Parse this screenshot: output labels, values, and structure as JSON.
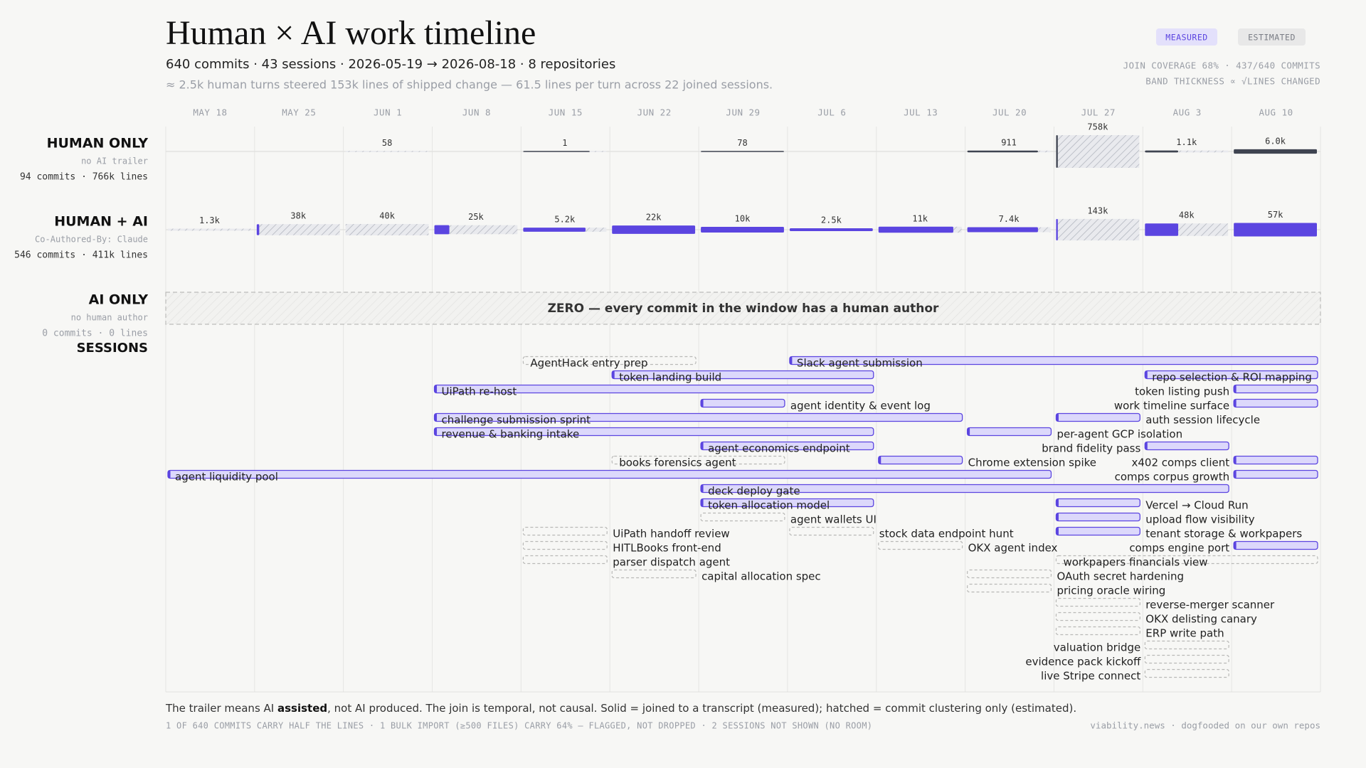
{
  "chart_data": {
    "type": "timeline",
    "title": "Human × AI work timeline",
    "subtitle": "640 commits · 43 sessions · 2026-05-19 → 2026-08-18 · 8 repositories",
    "note": "≈ 2.5k human turns steered 153k lines of shipped change — 61.5 lines per turn across 22 joined sessions.",
    "badges": [
      "MEASURED",
      "ESTIMATED"
    ],
    "coverage": [
      "JOIN COVERAGE 68% · 437/640 COMMITS",
      "BAND THICKNESS ∝ √LINES CHANGED"
    ],
    "x": [
      "MAY 18",
      "MAY 25",
      "JUN 1",
      "JUN 8",
      "JUN 15",
      "JUN 22",
      "JUN 29",
      "JUL 6",
      "JUL 13",
      "JUL 20",
      "JUL 27",
      "AUG 3",
      "AUG 10"
    ],
    "xlim": [
      0,
      13
    ],
    "lanes": [
      {
        "label": "HUMAN ONLY",
        "note": "no AI trailer",
        "stats": "94 commits · 766k lines",
        "color": "#3f4451",
        "values": [
          null,
          null,
          58,
          null,
          1,
          null,
          78,
          null,
          null,
          911,
          758000,
          1100,
          6000
        ],
        "value_labels": [
          null,
          null,
          "58",
          null,
          "1",
          null,
          "78",
          null,
          null,
          "911",
          "758k",
          "1.1k",
          "6.0k"
        ],
        "measured": [
          null,
          null,
          0,
          null,
          0.8,
          null,
          1,
          null,
          null,
          0.85,
          0.02,
          0.4,
          1
        ]
      },
      {
        "label": "HUMAN + AI",
        "note": "Co-Authored-By: Claude",
        "stats": "546 commits · 411k lines",
        "color": "#5b45e0",
        "values": [
          1300,
          38000,
          40000,
          25000,
          5200,
          22000,
          10000,
          2500,
          11000,
          7400,
          143000,
          48000,
          57000
        ],
        "value_labels": [
          "1.3k",
          "38k",
          "40k",
          "25k",
          "5.2k",
          "22k",
          "10k",
          "2.5k",
          "11k",
          "7.4k",
          "143k",
          "48k",
          "57k"
        ],
        "measured": [
          0,
          0.03,
          0,
          0.18,
          0.75,
          1,
          1,
          1,
          0.9,
          0.85,
          0.02,
          0.4,
          1
        ]
      },
      {
        "label": "AI ONLY",
        "note": "no human author",
        "stats": "0 commits · 0 lines",
        "empty_text": "ZERO — every commit in the window has a human author"
      }
    ],
    "sessions_label": "SESSIONS",
    "session_color": "#5b45e0",
    "sessions": [
      {
        "name": "AgentHack entry prep",
        "start": 4,
        "end": 6,
        "measured": false
      },
      {
        "name": "Slack agent submission",
        "start": 7,
        "end": 13,
        "measured": true
      },
      {
        "name": "token landing build",
        "start": 5,
        "end": 8,
        "measured": true
      },
      {
        "name": "repo selection & ROI mapping",
        "start": 11,
        "end": 13,
        "measured": true
      },
      {
        "name": "UiPath re-host",
        "start": 3,
        "end": 8,
        "measured": true
      },
      {
        "name": "token listing push",
        "start": 12,
        "end": 13,
        "measured": true
      },
      {
        "name": "agent identity & event log",
        "start": 6,
        "end": 7,
        "measured": true
      },
      {
        "name": "work timeline surface",
        "start": 12,
        "end": 13,
        "measured": true
      },
      {
        "name": "challenge submission sprint",
        "start": 3,
        "end": 9,
        "measured": true
      },
      {
        "name": "auth session lifecycle",
        "start": 10,
        "end": 11,
        "measured": true
      },
      {
        "name": "revenue & banking intake",
        "start": 3,
        "end": 8,
        "measured": true
      },
      {
        "name": "per-agent GCP isolation",
        "start": 9,
        "end": 10,
        "measured": true
      },
      {
        "name": "agent economics endpoint",
        "start": 6,
        "end": 8,
        "measured": true
      },
      {
        "name": "brand fidelity pass",
        "start": 11,
        "end": 12,
        "measured": true
      },
      {
        "name": "books forensics agent",
        "start": 5,
        "end": 7,
        "measured": false
      },
      {
        "name": "Chrome extension spike",
        "start": 8,
        "end": 9,
        "measured": true
      },
      {
        "name": "x402 comps client",
        "start": 12,
        "end": 13,
        "measured": true
      },
      {
        "name": "agent liquidity pool",
        "start": 0,
        "end": 10,
        "measured": true
      },
      {
        "name": "comps corpus growth",
        "start": 12,
        "end": 13,
        "measured": true
      },
      {
        "name": "deck deploy gate",
        "start": 6,
        "end": 12,
        "measured": true
      },
      {
        "name": "token allocation model",
        "start": 6,
        "end": 8,
        "measured": true
      },
      {
        "name": "Vercel → Cloud Run",
        "start": 10,
        "end": 11,
        "measured": true
      },
      {
        "name": "agent wallets UI",
        "start": 6,
        "end": 7,
        "measured": false
      },
      {
        "name": "upload flow visibility",
        "start": 10,
        "end": 11,
        "measured": true
      },
      {
        "name": "UiPath handoff review",
        "start": 4,
        "end": 5,
        "measured": false
      },
      {
        "name": "stock data endpoint hunt",
        "start": 7,
        "end": 8,
        "measured": false
      },
      {
        "name": "tenant storage & workpapers",
        "start": 10,
        "end": 11,
        "measured": true
      },
      {
        "name": "HITLBooks front-end",
        "start": 4,
        "end": 5,
        "measured": false
      },
      {
        "name": "OKX agent index",
        "start": 8,
        "end": 9,
        "measured": false
      },
      {
        "name": "comps engine port",
        "start": 12,
        "end": 13,
        "measured": true
      },
      {
        "name": "parser dispatch agent",
        "start": 4,
        "end": 5,
        "measured": false
      },
      {
        "name": "workpapers financials view",
        "start": 10,
        "end": 13,
        "measured": false
      },
      {
        "name": "capital allocation spec",
        "start": 5,
        "end": 6,
        "measured": false
      },
      {
        "name": "OAuth secret hardening",
        "start": 9,
        "end": 10,
        "measured": false
      },
      {
        "name": "pricing oracle wiring",
        "start": 9,
        "end": 10,
        "measured": false
      },
      {
        "name": "reverse-merger scanner",
        "start": 10,
        "end": 11,
        "measured": false
      },
      {
        "name": "OKX delisting canary",
        "start": 10,
        "end": 11,
        "measured": false
      },
      {
        "name": "ERP write path",
        "start": 10,
        "end": 11,
        "measured": false
      },
      {
        "name": "valuation bridge",
        "start": 11,
        "end": 12,
        "measured": false
      },
      {
        "name": "evidence pack kickoff",
        "start": 11,
        "end": 12,
        "measured": false
      },
      {
        "name": "live Stripe connect",
        "start": 11,
        "end": 12,
        "measured": false
      }
    ],
    "footer": {
      "before": "The trailer means AI ",
      "emphasis": "assisted",
      "after": ", not AI produced. The join is temporal, not causal. Solid = joined to a transcript (measured); hatched = commit clustering only (estimated).",
      "flags": "1 OF 640 COMMITS CARRY HALF THE LINES · 1 BULK IMPORT (≥500 FILES) CARRY 64% — FLAGGED, NOT DROPPED · 2 SESSIONS NOT SHOWN (NO ROOM)",
      "credit": "viability.news · dogfooded on our own repos"
    }
  }
}
